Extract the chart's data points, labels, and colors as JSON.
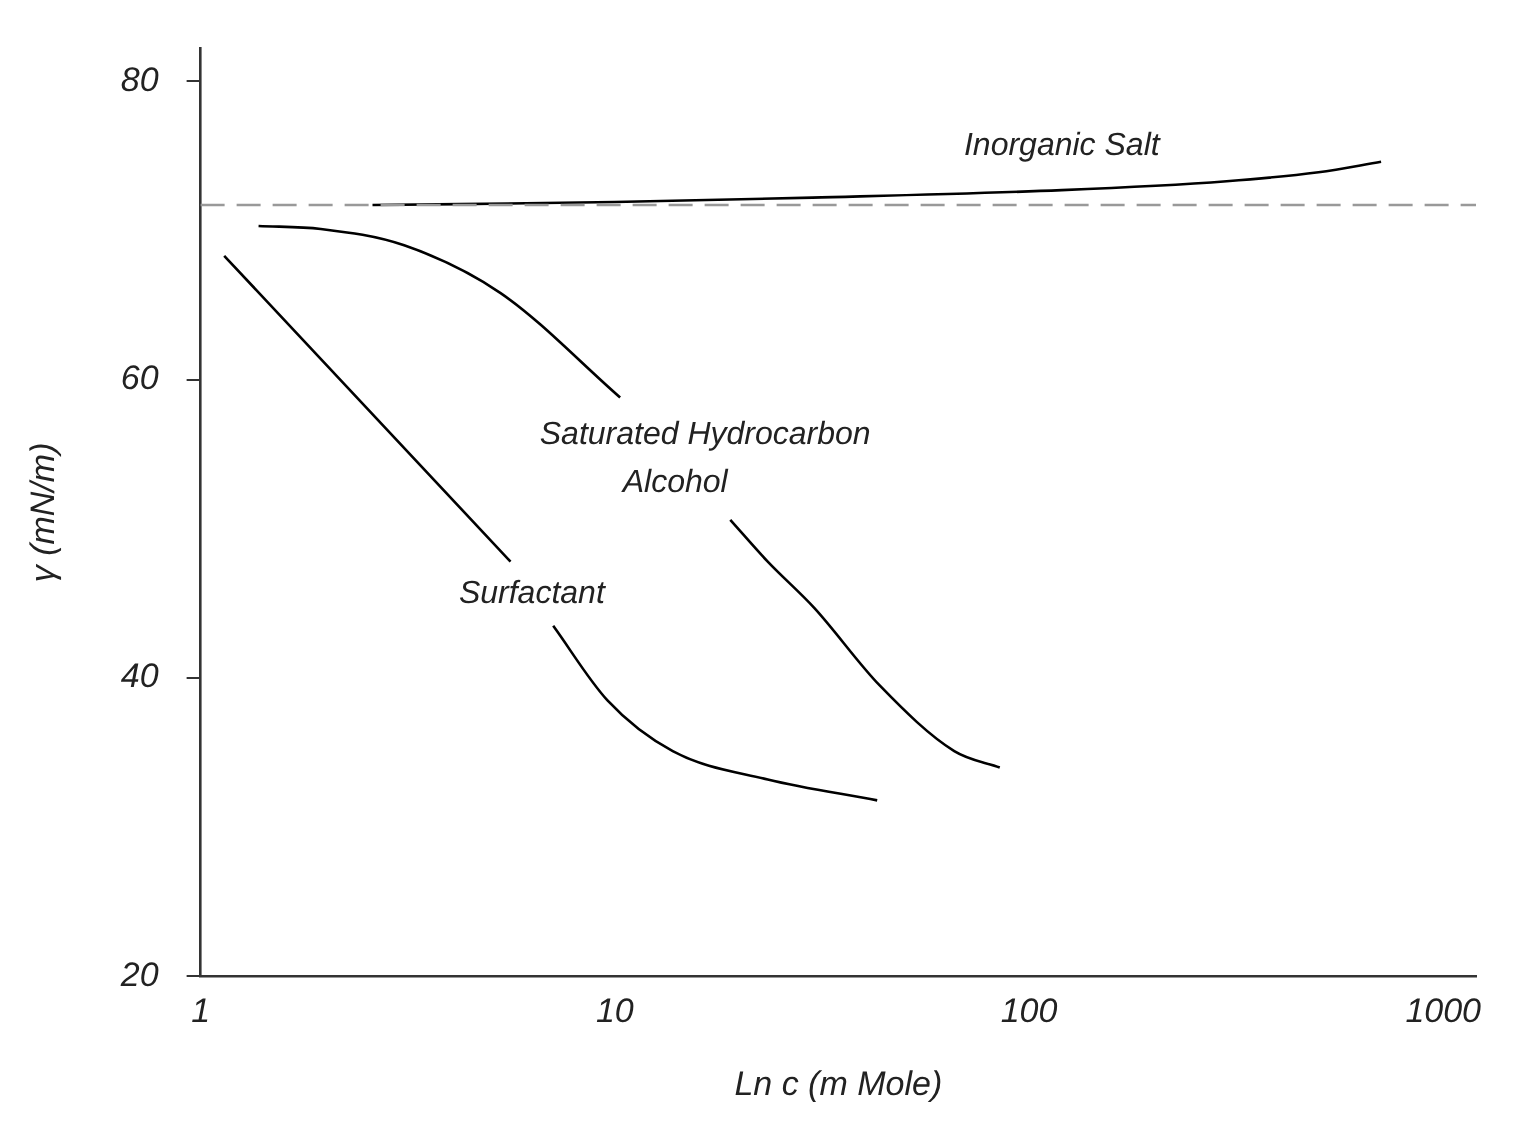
{
  "chart_data": {
    "type": "line",
    "xlabel": "Ln c (m Mole)",
    "ylabel": "γ (mN/m)",
    "log": "x",
    "xlim": [
      1,
      1200
    ],
    "xticks": [
      1,
      10,
      100,
      1000
    ],
    "ylim": [
      20,
      82.2
    ],
    "yticks": [
      20,
      40,
      60,
      80
    ],
    "grid": false,
    "legend": false,
    "marker": "none",
    "line_style": "solid",
    "ref_lines": [
      {
        "axis": "y",
        "value": 71.7,
        "color": "#999999",
        "line_style": "dashed"
      }
    ],
    "series": [
      {
        "name": "Inorganic Salt",
        "color": "#000000",
        "x": [
          2.6,
          10,
          30,
          120,
          300,
          500,
          708
        ],
        "values": [
          71.7,
          71.9,
          72.2,
          72.7,
          73.3,
          73.9,
          74.6
        ]
      },
      {
        "name": "Saturated Hydrocarbon\nAlcohol",
        "color": "#000000",
        "x": [
          1.38,
          1.95,
          3.1,
          5.3,
          10.3,
          14,
          19,
          23.4,
          30.3,
          43.6,
          66,
          85
        ],
        "values": [
          70.3,
          70.1,
          69.0,
          65.8,
          58.8,
          null,
          50.6,
          47.8,
          44.7,
          39.5,
          35.1,
          34.0
        ]
      },
      {
        "name": "Surfactant",
        "color": "#000000",
        "x": [
          1.14,
          5.6,
          6.3,
          7.1,
          9.6,
          13.8,
          23.4,
          43
        ],
        "values": [
          68.3,
          47.8,
          null,
          43.5,
          38.5,
          35.1,
          33.2,
          31.8
        ]
      }
    ]
  }
}
